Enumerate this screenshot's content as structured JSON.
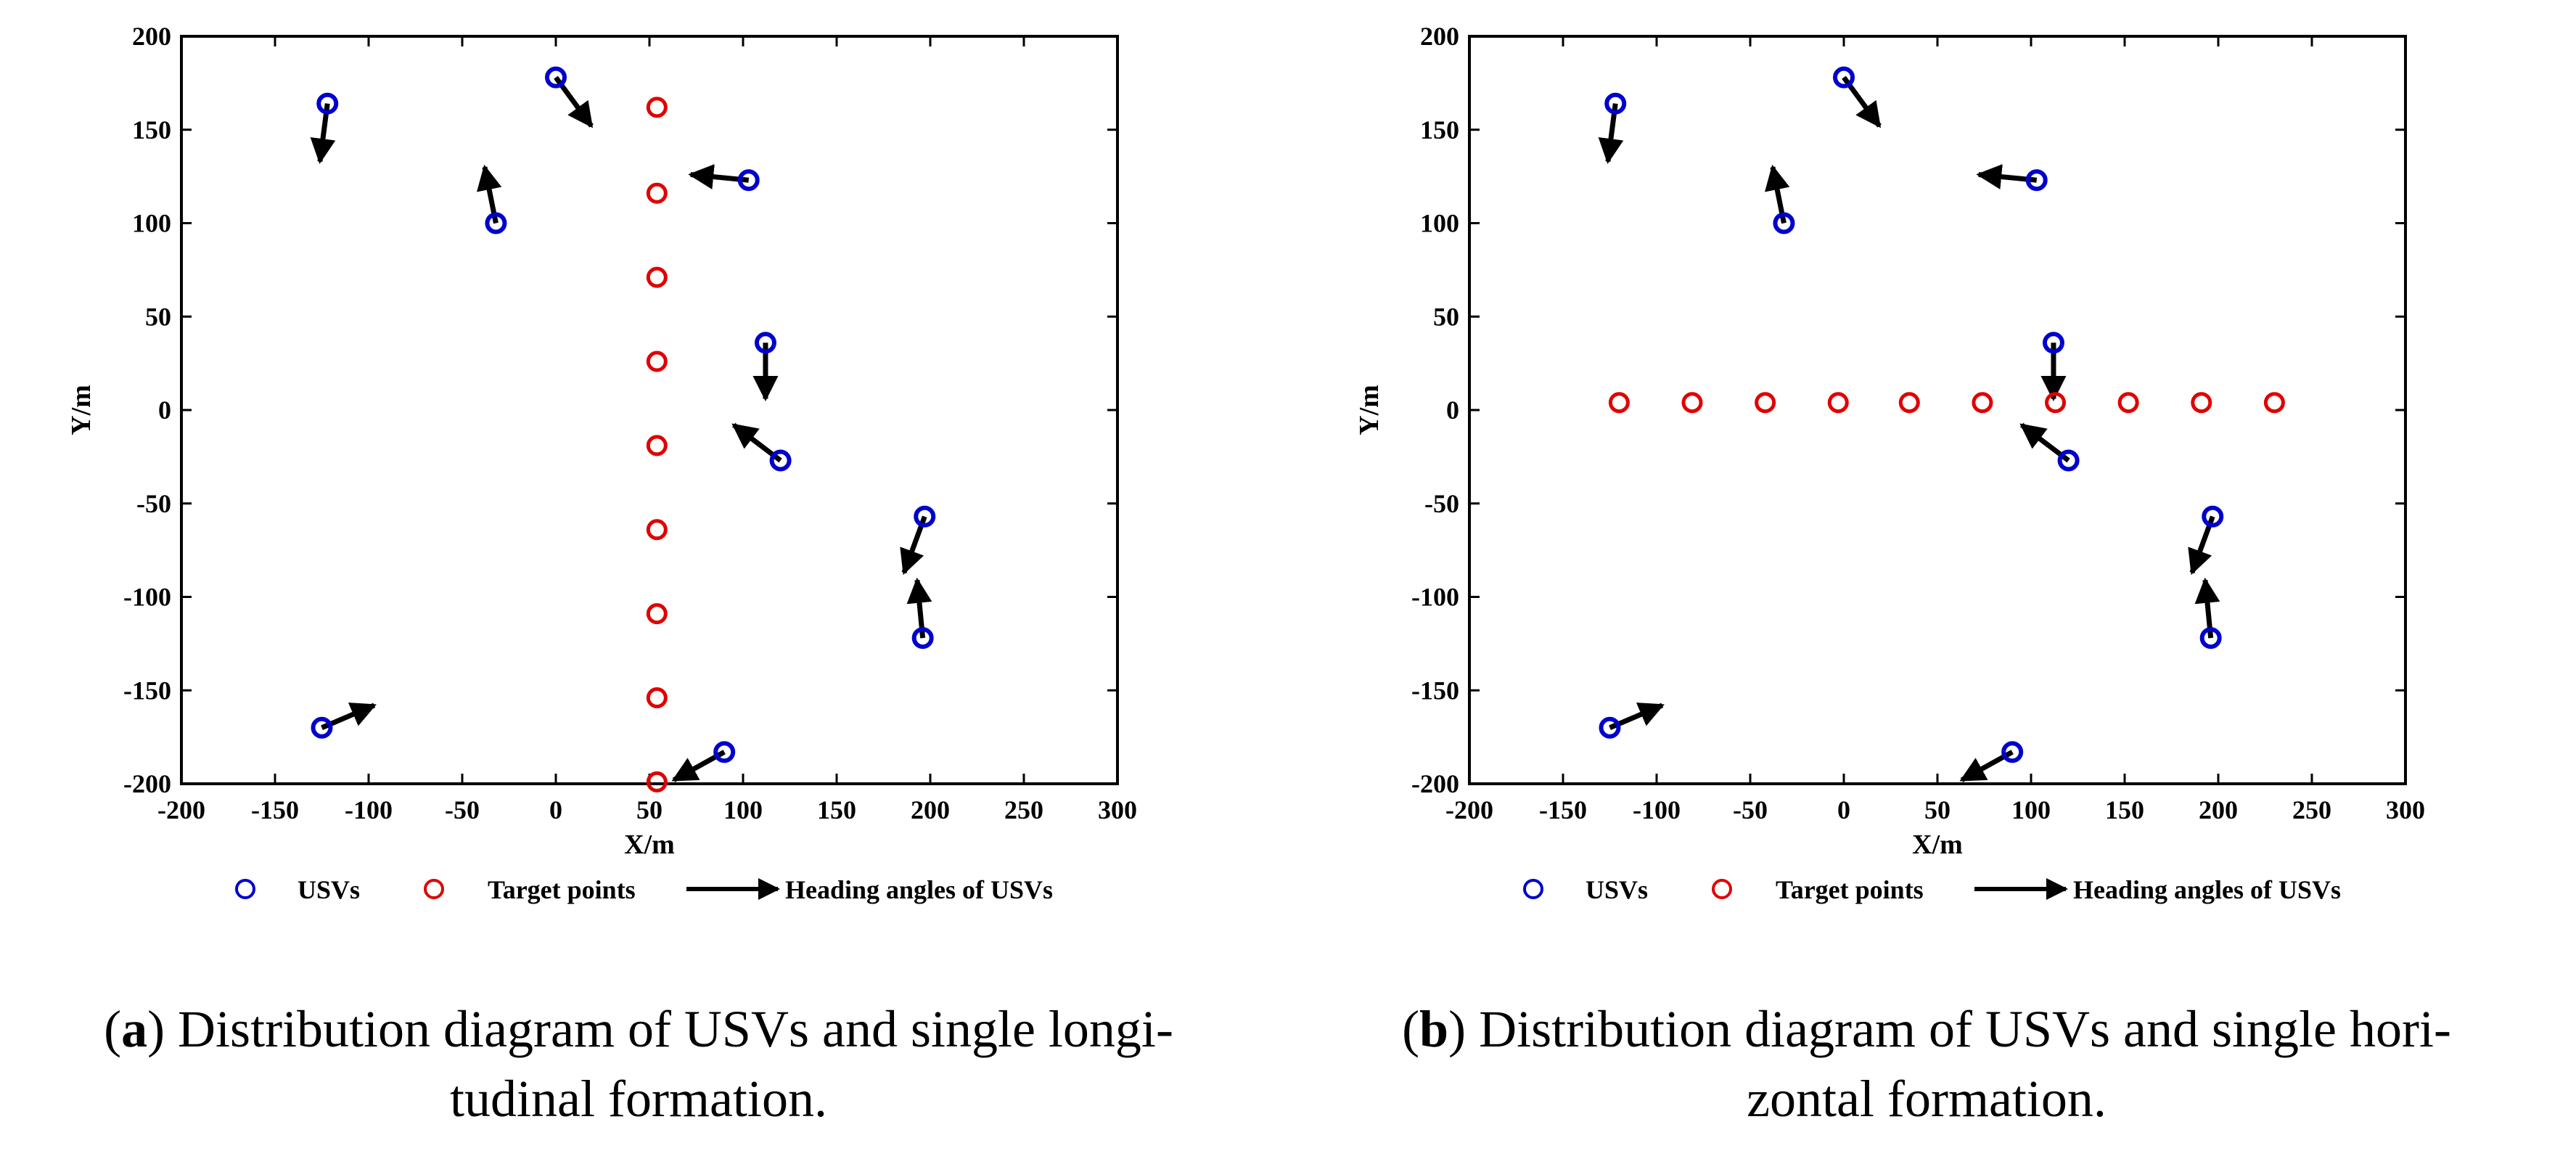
{
  "colors": {
    "usv": "#0000cc",
    "target": "#e00000",
    "arrow": "#000000"
  },
  "panels": [
    {
      "caption": {
        "letter": "a",
        "text": "Distribution diagram of USVs and single longitudinal formation.",
        "line1": "Distribution diagram of USVs and single longi-",
        "line2": "tudinal formation."
      },
      "legend": {
        "usvs": "USVs",
        "targets": "Target points",
        "headings": "Heading angles of USVs"
      }
    },
    {
      "caption": {
        "letter": "b",
        "text": "Distribution diagram of USVs and single horizontal formation.",
        "line1": "Distribution diagram of USVs and single hori-",
        "line2": "zontal formation."
      },
      "legend": {
        "usvs": "USVs",
        "targets": "Target points",
        "headings": "Heading angles of USVs"
      }
    }
  ],
  "chart_data": [
    {
      "type": "scatter",
      "title": "",
      "xlabel": "X/m",
      "ylabel": "Y/m",
      "xlim": [
        -200,
        300
      ],
      "ylim": [
        -200,
        200
      ],
      "xticks": [
        -200,
        -150,
        -100,
        -50,
        0,
        50,
        100,
        150,
        200,
        250,
        300
      ],
      "yticks": [
        200,
        150,
        100,
        50,
        0,
        -50,
        -100,
        -150,
        -200
      ],
      "legend_position": "bottom",
      "series": [
        {
          "name": "USVs",
          "points": [
            [
              -122,
              164
            ],
            [
              0,
              178
            ],
            [
              -32,
              100
            ],
            [
              103,
              123
            ],
            [
              112,
              36
            ],
            [
              120,
              -27
            ],
            [
              197,
              -57
            ],
            [
              196,
              -122
            ],
            [
              -125,
              -170
            ],
            [
              90,
              -183
            ]
          ]
        },
        {
          "name": "Target points",
          "points": [
            [
              54,
              162
            ],
            [
              54,
              116
            ],
            [
              54,
              71
            ],
            [
              54,
              26
            ],
            [
              54,
              -19
            ],
            [
              54,
              -64
            ],
            [
              54,
              -109
            ],
            [
              54,
              -154
            ],
            [
              54,
              -199
            ]
          ]
        },
        {
          "name": "Heading angles of USVs",
          "arrows": [
            [
              -122,
              164,
              -126,
              133
            ],
            [
              0,
              178,
              19,
              152
            ],
            [
              -32,
              100,
              -38,
              130
            ],
            [
              103,
              123,
              72,
              126
            ],
            [
              112,
              36,
              112,
              6
            ],
            [
              120,
              -27,
              95,
              -8
            ],
            [
              197,
              -57,
              186,
              -87
            ],
            [
              196,
              -122,
              193,
              -91
            ],
            [
              -125,
              -170,
              -97,
              -158
            ],
            [
              90,
              -183,
              63,
              -198
            ]
          ]
        }
      ]
    },
    {
      "type": "scatter",
      "title": "",
      "xlabel": "X/m",
      "ylabel": "Y/m",
      "xlim": [
        -200,
        300
      ],
      "ylim": [
        -200,
        200
      ],
      "xticks": [
        -200,
        -150,
        -100,
        -50,
        0,
        50,
        100,
        150,
        200,
        250,
        300
      ],
      "yticks": [
        200,
        150,
        100,
        50,
        0,
        -50,
        -100,
        -150,
        -200
      ],
      "legend_position": "bottom",
      "series": [
        {
          "name": "USVs",
          "points": [
            [
              -122,
              164
            ],
            [
              0,
              178
            ],
            [
              -32,
              100
            ],
            [
              103,
              123
            ],
            [
              112,
              36
            ],
            [
              120,
              -27
            ],
            [
              197,
              -57
            ],
            [
              196,
              -122
            ],
            [
              -125,
              -170
            ],
            [
              90,
              -183
            ]
          ]
        },
        {
          "name": "Target points",
          "points": [
            [
              -120,
              4
            ],
            [
              -81,
              4
            ],
            [
              -42,
              4
            ],
            [
              -3,
              4
            ],
            [
              35,
              4
            ],
            [
              74,
              4
            ],
            [
              113,
              4
            ],
            [
              152,
              4
            ],
            [
              191,
              4
            ],
            [
              230,
              4
            ]
          ]
        },
        {
          "name": "Heading angles of USVs",
          "arrows": [
            [
              -122,
              164,
              -126,
              133
            ],
            [
              0,
              178,
              19,
              152
            ],
            [
              -32,
              100,
              -38,
              130
            ],
            [
              103,
              123,
              72,
              126
            ],
            [
              112,
              36,
              112,
              6
            ],
            [
              120,
              -27,
              95,
              -8
            ],
            [
              197,
              -57,
              186,
              -87
            ],
            [
              196,
              -122,
              193,
              -91
            ],
            [
              -125,
              -170,
              -97,
              -158
            ],
            [
              90,
              -183,
              63,
              -198
            ]
          ]
        }
      ]
    }
  ]
}
